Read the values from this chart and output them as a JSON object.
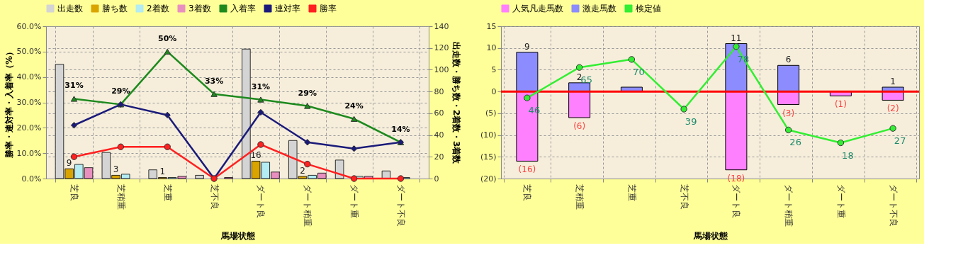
{
  "chart_data": [
    {
      "type": "bar",
      "categories": [
        "芝良",
        "芝稍重",
        "芝重",
        "芝不良",
        "ダート良",
        "ダート稍重",
        "ダート重",
        "ダート不良"
      ],
      "xlabel": "馬場状態",
      "ylabel": "勝率・連対率・入着率（%）",
      "y2label": "出走数・勝ち数・2着数・3着数",
      "ylim": [
        0,
        60
      ],
      "yticks": [
        {
          "value": 0,
          "label": "0.0%"
        },
        {
          "value": 10,
          "label": "10.0%"
        },
        {
          "value": 20,
          "label": "20.0%"
        },
        {
          "value": 30,
          "label": "30.0%"
        },
        {
          "value": 40,
          "label": "40.0%"
        },
        {
          "value": 50,
          "label": "50.0%"
        },
        {
          "value": 60,
          "label": "60.0%"
        }
      ],
      "y2lim": [
        0,
        140
      ],
      "y2ticks": [
        0,
        20,
        40,
        60,
        80,
        100,
        120,
        140
      ],
      "grid": true,
      "legend": "top",
      "series": [
        {
          "name": "出走数",
          "color": "#d4d4d4",
          "axis": "y2",
          "values": [
            105,
            24,
            8,
            3,
            119,
            35,
            17,
            7
          ]
        },
        {
          "name": "勝ち数",
          "color": "#d9a400",
          "axis": "y2",
          "values": [
            9,
            3,
            1,
            0,
            16,
            2,
            0,
            0
          ],
          "value_labels": [
            "9",
            "3",
            "1",
            null,
            "16",
            "2",
            null,
            null
          ]
        },
        {
          "name": "2着数",
          "color": "#b3ecf2",
          "axis": "y2",
          "values": [
            13,
            4,
            1,
            0,
            15,
            3,
            2,
            1
          ]
        },
        {
          "name": "3着数",
          "color": "#e98fc0",
          "axis": "y2",
          "values": [
            10,
            0,
            2,
            1,
            6,
            5,
            2,
            0
          ]
        },
        {
          "name": "入着率",
          "type": "line",
          "color": "#1e8a1e",
          "marker": "triangle",
          "values": [
            31.4,
            29.2,
            50,
            33.3,
            31.1,
            28.6,
            23.5,
            14.3
          ],
          "value_labels": [
            "31%",
            "29%",
            "50%",
            "33%",
            "31%",
            "29%",
            "24%",
            "14%"
          ]
        },
        {
          "name": "連対率",
          "type": "line",
          "color": "#1a1a7a",
          "marker": "diamond",
          "values": [
            21.0,
            29.2,
            25.0,
            0,
            26.1,
            14.3,
            11.8,
            14.3
          ]
        },
        {
          "name": "勝率",
          "type": "line",
          "color": "#ff2020",
          "marker": "circle",
          "values": [
            8.6,
            12.5,
            12.5,
            0,
            13.4,
            5.7,
            0,
            0
          ]
        }
      ]
    },
    {
      "type": "bar",
      "stacked": true,
      "categories": [
        "芝良",
        "芝稍重",
        "芝重",
        "芝不良",
        "ダート良",
        "ダート稍重",
        "ダート重",
        "ダート不良"
      ],
      "xlabel": "馬場状態",
      "ylim": [
        -20,
        15
      ],
      "yticks": [
        {
          "value": -20,
          "label": "(20)"
        },
        {
          "value": -15,
          "label": "(15)"
        },
        {
          "value": -10,
          "label": "(10)"
        },
        {
          "value": -5,
          "label": "(5)"
        },
        0,
        5,
        10,
        15
      ],
      "y2lim": [
        -4.3,
        90.7
      ],
      "grid": true,
      "legend": "top",
      "ref_lines": [
        {
          "axis": "y",
          "value": 0,
          "color": "#ff0000"
        }
      ],
      "series": [
        {
          "name": "人気凡走馬数",
          "color": "#ff80ff",
          "values": [
            -16,
            -6,
            0,
            0,
            -18,
            -3,
            -1,
            -2
          ],
          "value_labels": [
            "(16)",
            "(6)",
            null,
            null,
            "(18)",
            "(3)",
            "(1)",
            "(2)"
          ]
        },
        {
          "name": "激走馬数",
          "color": "#8c8cff",
          "values": [
            9,
            2,
            1,
            0,
            11,
            6,
            0,
            1
          ],
          "value_labels": [
            "9",
            "2",
            null,
            null,
            "11",
            "6",
            null,
            "1"
          ]
        },
        {
          "name": "検定値",
          "type": "line",
          "axis": "y2",
          "color": "#33ee33",
          "marker": "circle",
          "values": [
            46,
            65,
            70,
            39,
            78,
            26,
            18,
            27
          ],
          "value_labels": [
            "46",
            "65",
            "70",
            "39",
            "78",
            "26",
            "18",
            "27"
          ]
        }
      ]
    }
  ]
}
